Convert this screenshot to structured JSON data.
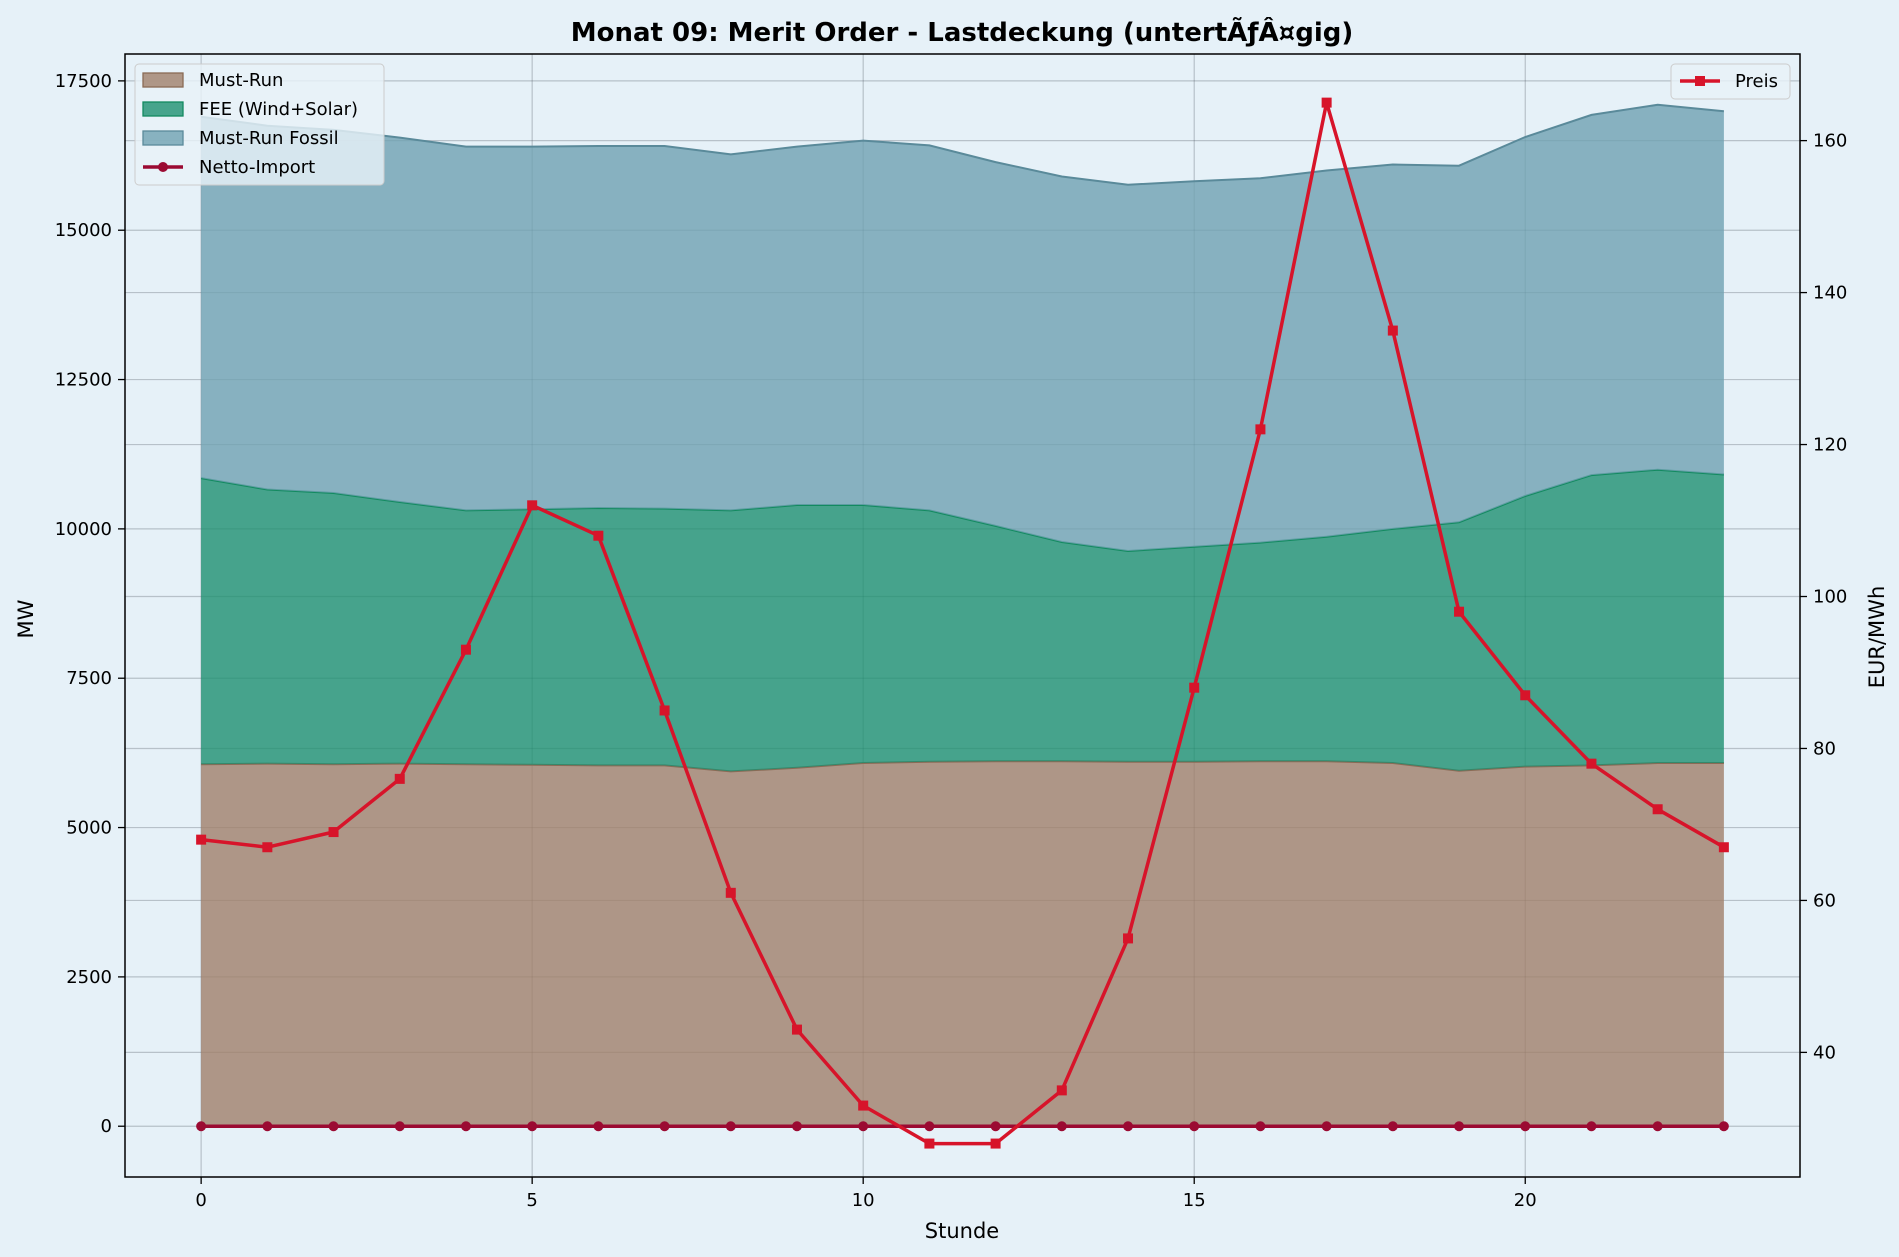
{
  "chart_data": {
    "type": "area",
    "title": "Monat 09: Merit Order - Lastdeckung (untertÃƒÂ¤gig)",
    "xlabel": "Stunde",
    "ylabel": "MW",
    "y2label": "EUR/MWh",
    "x": [
      0,
      1,
      2,
      3,
      4,
      5,
      6,
      7,
      8,
      9,
      10,
      11,
      12,
      13,
      14,
      15,
      16,
      17,
      18,
      19,
      20,
      21,
      22,
      23
    ],
    "xlim": [
      -1.15,
      24.15
    ],
    "ylim": [
      -850,
      17950
    ],
    "y2lim": [
      23.6,
      171.4
    ],
    "xticks": [
      0,
      5,
      10,
      15,
      20
    ],
    "yticks": [
      0,
      2500,
      5000,
      7500,
      10000,
      12500,
      15000,
      17500
    ],
    "y2ticks": [
      40,
      60,
      80,
      100,
      120,
      140,
      160
    ],
    "grid": true,
    "legend_left_position": "upper-left",
    "legend_right_position": "upper-right",
    "stacked_series": [
      {
        "name": "Must-Run",
        "color": "#a0806a",
        "edge": "#8a6b56",
        "values": [
          6060,
          6070,
          6060,
          6070,
          6060,
          6050,
          6040,
          6040,
          5940,
          6000,
          6080,
          6100,
          6110,
          6110,
          6100,
          6100,
          6110,
          6110,
          6080,
          5950,
          6020,
          6040,
          6080,
          6080
        ]
      },
      {
        "name": "FEE (Wind+Solar)",
        "color": "#1e9070",
        "edge": "#138a60",
        "values": [
          4790,
          4590,
          4540,
          4380,
          4250,
          4280,
          4310,
          4300,
          4370,
          4400,
          4320,
          4210,
          3940,
          3670,
          3530,
          3600,
          3660,
          3760,
          3920,
          4160,
          4530,
          4860,
          4910,
          4830
        ]
      },
      {
        "name": "Must-Run Fossil",
        "color": "#6fa1b2",
        "edge": "#5a8a9a",
        "values": [
          6050,
          6090,
          6080,
          6100,
          6090,
          6070,
          6060,
          6070,
          5960,
          6000,
          6100,
          6110,
          6090,
          6120,
          6130,
          6120,
          6100,
          6130,
          6100,
          5970,
          6010,
          6030,
          6110,
          6080
        ]
      }
    ],
    "line_series": [
      {
        "name": "Netto-Import",
        "axis": "left",
        "color": "#9b0a32",
        "marker": "circle",
        "values": [
          0,
          0,
          0,
          0,
          0,
          0,
          0,
          0,
          0,
          0,
          0,
          0,
          0,
          0,
          0,
          0,
          0,
          0,
          0,
          0,
          0,
          0,
          0,
          0
        ]
      },
      {
        "name": "Preis",
        "axis": "right",
        "color": "#d7142a",
        "marker": "square",
        "values": [
          68,
          67,
          69,
          76,
          93,
          112,
          108,
          85,
          61,
          43,
          33,
          28,
          28,
          35,
          55,
          88,
          122,
          165,
          135,
          98,
          87,
          78,
          72,
          67
        ]
      }
    ]
  }
}
